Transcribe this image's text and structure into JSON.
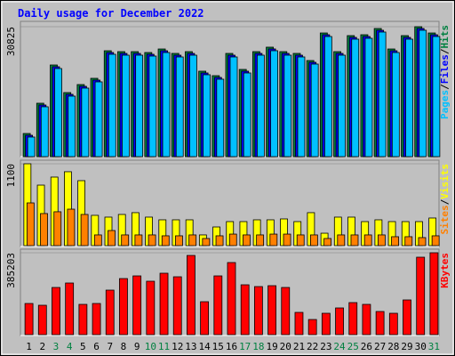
{
  "chart_data": [
    {
      "type": "bar",
      "title": "Daily usage for December 2022",
      "categories": [
        "1",
        "2",
        "3",
        "4",
        "5",
        "6",
        "7",
        "8",
        "9",
        "10",
        "11",
        "12",
        "13",
        "14",
        "15",
        "16",
        "17",
        "18",
        "19",
        "20",
        "21",
        "22",
        "23",
        "24",
        "25",
        "26",
        "27",
        "28",
        "29",
        "30",
        "31"
      ],
      "category_colors": [
        "#000000",
        "#000000",
        "#008040",
        "#008040",
        "#000000",
        "#000000",
        "#000000",
        "#000000",
        "#000000",
        "#008040",
        "#008040",
        "#000000",
        "#000000",
        "#000000",
        "#000000",
        "#000000",
        "#008040",
        "#008040",
        "#000000",
        "#000000",
        "#000000",
        "#000000",
        "#000000",
        "#008040",
        "#008040",
        "#000000",
        "#000000",
        "#000000",
        "#000000",
        "#000000",
        "#008040"
      ],
      "legend_separator": "/",
      "series": [
        {
          "name": "Hits",
          "color": "#008040",
          "values": [
            5490,
            12670,
            21745,
            15200,
            17100,
            18580,
            25120,
            24910,
            24910,
            24700,
            25540,
            24490,
            24910,
            20270,
            19210,
            24490,
            20690,
            24910,
            25970,
            24910,
            24490,
            22800,
            29340,
            24910,
            28710,
            28920,
            30400,
            25540,
            28710,
            30825,
            29340
          ]
        },
        {
          "name": "Files",
          "color": "#0000ff",
          "values": [
            5070,
            12250,
            21325,
            14780,
            16680,
            18160,
            24700,
            24490,
            24490,
            24280,
            25120,
            24070,
            24490,
            19850,
            18790,
            24070,
            20270,
            24490,
            25550,
            24490,
            24070,
            22380,
            28920,
            24490,
            28290,
            28500,
            29980,
            25120,
            28290,
            30405,
            28920
          ]
        },
        {
          "name": "Pages",
          "color": "#00c0ff",
          "values": [
            4650,
            11830,
            20905,
            14360,
            16260,
            17740,
            24280,
            24070,
            24070,
            23860,
            24700,
            23650,
            24070,
            19430,
            18370,
            23650,
            19850,
            24070,
            25130,
            24070,
            23650,
            21960,
            28500,
            24070,
            27870,
            28080,
            29560,
            24700,
            27870,
            29985,
            28500
          ]
        }
      ],
      "ylim": [
        0,
        30825
      ],
      "yticks": [
        30825
      ]
    },
    {
      "type": "bar",
      "series": [
        {
          "name": "Visits",
          "color": "#ffff00",
          "values": [
            1100,
            813,
            921,
            993,
            873,
            407,
            383,
            419,
            443,
            383,
            347,
            347,
            347,
            144,
            251,
            323,
            323,
            347,
            347,
            359,
            323,
            443,
            167,
            383,
            383,
            323,
            347,
            323,
            323,
            323,
            371
          ]
        },
        {
          "name": "Sites",
          "color": "#ff8000",
          "values": [
            574,
            431,
            455,
            490,
            419,
            144,
            203,
            144,
            144,
            144,
            132,
            132,
            144,
            96,
            132,
            155,
            144,
            144,
            155,
            155,
            144,
            144,
            96,
            144,
            144,
            144,
            144,
            120,
            120,
            108,
            132
          ]
        }
      ],
      "ylim": [
        0,
        1100
      ],
      "yticks": [
        1100
      ]
    },
    {
      "type": "bar",
      "series": [
        {
          "name": "KBytes",
          "color": "#ff0000",
          "values": [
            146545,
            138171,
            221911,
            242846,
            142358,
            146545,
            209350,
            263781,
            276342,
            251220,
            288903,
            272155,
            372643,
            154919,
            276342,
            339147,
            234472,
            226098,
            230285,
            221911,
            104675,
            71179,
            100488,
            125610,
            150732,
            142358,
            108862,
            100488,
            163293,
            364269,
            385203
          ]
        }
      ],
      "ylim": [
        0,
        385203
      ],
      "yticks": [
        385203
      ]
    }
  ]
}
